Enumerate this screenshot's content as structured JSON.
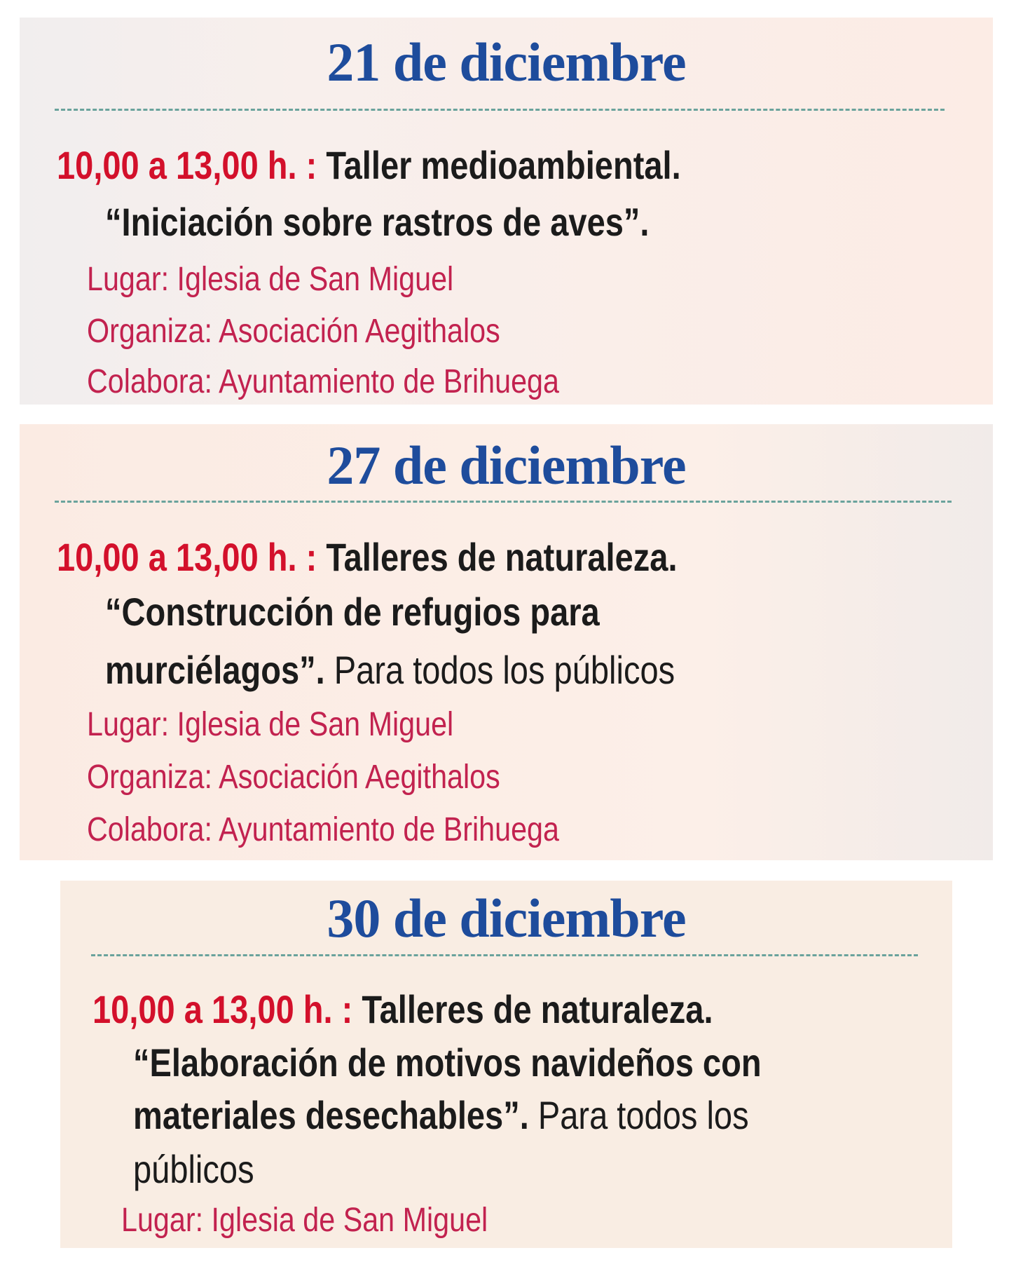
{
  "days": [
    {
      "heading": "21 de diciembre",
      "time": "10,00 a 13,00  h. : ",
      "title": "Taller medioambiental.",
      "quote_lines": [
        "“Iniciación sobre rastros de aves”."
      ],
      "lugar": "Lugar: Iglesia de San Miguel",
      "organiza": "Organiza: Asociación Aegithalos",
      "colabora": "Colabora: Ayuntamiento de Brihuega"
    },
    {
      "heading": "27 de diciembre",
      "time": "10,00 a 13,00  h. : ",
      "title": "Talleres de naturaleza.",
      "quote_lines": [
        "“Construcción de refugios para",
        "murciélagos”."
      ],
      "audience": " Para todos los públicos",
      "lugar": "Lugar: Iglesia de San Miguel",
      "organiza": "Organiza: Asociación Aegithalos",
      "colabora": "Colabora: Ayuntamiento de Brihuega"
    },
    {
      "heading": "30 de diciembre",
      "time": "10,00 a 13,00  h. : ",
      "title": "Talleres de naturaleza.",
      "quote_lines": [
        "“Elaboración de motivos navideños con",
        "materiales desechables”."
      ],
      "audience": " Para todos los",
      "audience_cont": "públicos",
      "lugar": "Lugar: Iglesia de San Miguel"
    }
  ],
  "colors": {
    "heading": "#1e4c9c",
    "time": "#d3102b",
    "meta": "#c2224f",
    "divider": "#6aa39c"
  }
}
